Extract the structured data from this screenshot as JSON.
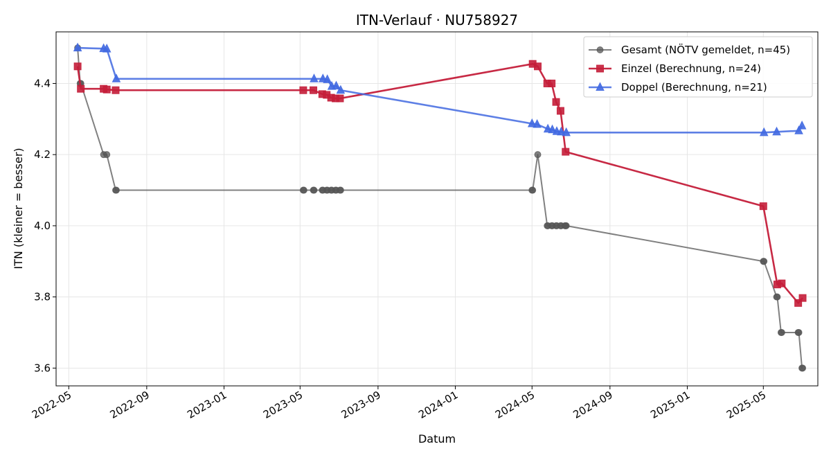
{
  "chart_data": {
    "type": "line",
    "title": "ITN-Verlauf · NU758927",
    "xlabel": "Datum",
    "ylabel": "ITN  (kleiner = besser)",
    "x_axis_type": "date",
    "xlim": [
      "2022-04-11",
      "2025-07-26"
    ],
    "ylim": [
      3.55,
      4.545
    ],
    "x_ticks": [
      "2022-05-01",
      "2022-09-01",
      "2023-01-01",
      "2023-05-01",
      "2023-09-01",
      "2024-01-01",
      "2024-05-01",
      "2024-09-01",
      "2025-01-01",
      "2025-05-01"
    ],
    "x_tick_labels": [
      "2022-05",
      "2022-09",
      "2023-01",
      "2023-05",
      "2023-09",
      "2024-01",
      "2024-05",
      "2024-09",
      "2025-01",
      "2025-05"
    ],
    "y_ticks": [
      3.6,
      3.8,
      4.0,
      4.2,
      4.4
    ],
    "y_tick_labels": [
      "3.6",
      "3.8",
      "4.0",
      "4.2",
      "4.4"
    ],
    "grid": true,
    "legend_position": "top-right",
    "series": [
      {
        "name": "Gesamt (NÖTV gemeldet, n=45)",
        "color": "#555555",
        "marker": "circle",
        "points": [
          [
            "2022-05-15",
            4.5
          ],
          [
            "2022-05-19",
            4.4
          ],
          [
            "2022-05-20",
            4.4
          ],
          [
            "2022-06-25",
            4.2
          ],
          [
            "2022-06-30",
            4.2
          ],
          [
            "2022-07-14",
            4.1
          ],
          [
            "2022-07-15",
            4.1
          ],
          [
            "2023-05-06",
            4.1
          ],
          [
            "2023-05-07",
            4.1
          ],
          [
            "2023-05-22",
            4.1
          ],
          [
            "2023-05-23",
            4.1
          ],
          [
            "2023-06-05",
            4.1
          ],
          [
            "2023-06-06",
            4.1
          ],
          [
            "2023-06-12",
            4.1
          ],
          [
            "2023-06-13",
            4.1
          ],
          [
            "2023-06-19",
            4.1
          ],
          [
            "2023-06-20",
            4.1
          ],
          [
            "2023-06-26",
            4.1
          ],
          [
            "2023-06-27",
            4.1
          ],
          [
            "2023-07-03",
            4.1
          ],
          [
            "2023-07-04",
            4.1
          ],
          [
            "2024-05-01",
            4.1
          ],
          [
            "2024-05-02",
            4.1
          ],
          [
            "2024-05-10",
            4.2
          ],
          [
            "2024-05-25",
            4.0
          ],
          [
            "2024-05-26",
            4.0
          ],
          [
            "2024-06-01",
            4.0
          ],
          [
            "2024-06-02",
            4.0
          ],
          [
            "2024-06-08",
            4.0
          ],
          [
            "2024-06-09",
            4.0
          ],
          [
            "2024-06-15",
            4.0
          ],
          [
            "2024-06-16",
            4.0
          ],
          [
            "2024-06-22",
            4.0
          ],
          [
            "2024-06-23",
            4.0
          ],
          [
            "2024-06-24",
            4.0
          ],
          [
            "2025-05-01",
            3.9
          ],
          [
            "2025-05-02",
            3.9
          ],
          [
            "2025-05-22",
            3.8
          ],
          [
            "2025-05-23",
            3.8
          ],
          [
            "2025-05-29",
            3.7
          ],
          [
            "2025-05-30",
            3.7
          ],
          [
            "2025-06-25",
            3.7
          ],
          [
            "2025-06-26",
            3.7
          ],
          [
            "2025-07-01",
            3.6
          ],
          [
            "2025-07-02",
            3.6
          ]
        ]
      },
      {
        "name": "Einzel (Berechnung, n=24)",
        "color": "#c41e3a",
        "marker": "square",
        "points": [
          [
            "2022-05-15",
            4.448
          ],
          [
            "2022-05-20",
            4.385
          ],
          [
            "2022-06-25",
            4.385
          ],
          [
            "2022-06-30",
            4.383
          ],
          [
            "2022-07-14",
            4.381
          ],
          [
            "2023-05-06",
            4.381
          ],
          [
            "2023-05-22",
            4.381
          ],
          [
            "2023-06-05",
            4.37
          ],
          [
            "2023-06-12",
            4.368
          ],
          [
            "2023-06-19",
            4.36
          ],
          [
            "2023-06-26",
            4.358
          ],
          [
            "2023-07-03",
            4.358
          ],
          [
            "2024-05-02",
            4.455
          ],
          [
            "2024-05-10",
            4.448
          ],
          [
            "2024-05-25",
            4.4
          ],
          [
            "2024-06-01",
            4.4
          ],
          [
            "2024-06-08",
            4.348
          ],
          [
            "2024-06-15",
            4.323
          ],
          [
            "2024-06-23",
            4.208
          ],
          [
            "2025-05-01",
            4.055
          ],
          [
            "2025-05-23",
            3.835
          ],
          [
            "2025-05-30",
            3.838
          ],
          [
            "2025-06-25",
            3.783
          ],
          [
            "2025-07-02",
            3.797
          ]
        ]
      },
      {
        "name": "Doppel (Berechnung, n=21)",
        "color": "#4169e1",
        "marker": "triangle",
        "points": [
          [
            "2022-05-15",
            4.5
          ],
          [
            "2022-06-25",
            4.498
          ],
          [
            "2022-06-30",
            4.497
          ],
          [
            "2022-07-15",
            4.413
          ],
          [
            "2023-05-23",
            4.413
          ],
          [
            "2023-06-06",
            4.413
          ],
          [
            "2023-06-13",
            4.411
          ],
          [
            "2023-06-20",
            4.392
          ],
          [
            "2023-06-27",
            4.393
          ],
          [
            "2023-07-04",
            4.381
          ],
          [
            "2024-05-01",
            4.287
          ],
          [
            "2024-05-09",
            4.285
          ],
          [
            "2024-05-26",
            4.272
          ],
          [
            "2024-06-02",
            4.27
          ],
          [
            "2024-06-09",
            4.265
          ],
          [
            "2024-06-16",
            4.264
          ],
          [
            "2024-06-24",
            4.262
          ],
          [
            "2025-05-02",
            4.262
          ],
          [
            "2025-05-22",
            4.264
          ],
          [
            "2025-06-26",
            4.267
          ],
          [
            "2025-07-01",
            4.281
          ]
        ]
      }
    ]
  }
}
